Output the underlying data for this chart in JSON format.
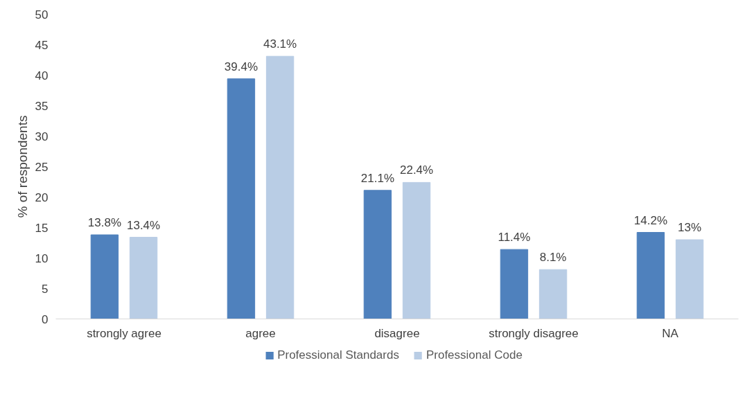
{
  "chart_data": {
    "type": "bar",
    "ylabel": "% of respondents",
    "categories": [
      "strongly agree",
      "agree",
      "disagree",
      "strongly disagree",
      "NA"
    ],
    "series": [
      {
        "name": "Professional Standards",
        "color": "#4f81bd",
        "values": [
          13.8,
          39.4,
          21.1,
          11.4,
          14.2
        ],
        "value_labels": [
          "13.8%",
          "39.4%",
          "21.1%",
          "11.4%",
          "14.2%"
        ]
      },
      {
        "name": "Professional Code",
        "color": "#b9cde5",
        "values": [
          13.4,
          43.1,
          22.4,
          8.1,
          13
        ],
        "value_labels": [
          "13.4%",
          "43.1%",
          "22.4%",
          "8.1%",
          "13%"
        ]
      }
    ],
    "ylim": [
      0,
      50
    ],
    "yticks": [
      0,
      5,
      10,
      15,
      20,
      25,
      30,
      35,
      40,
      45,
      50
    ],
    "grid": false,
    "legend": "bottom"
  }
}
